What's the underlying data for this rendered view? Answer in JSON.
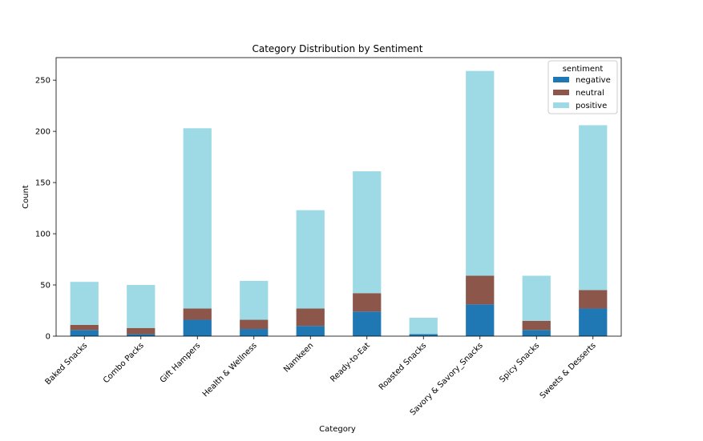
{
  "chart_data": {
    "type": "bar",
    "stacked": true,
    "title": "Category Distribution by Sentiment",
    "xlabel": "Category",
    "ylabel": "Count",
    "ylim": [
      0,
      272
    ],
    "yticks": [
      0,
      50,
      100,
      150,
      200,
      250
    ],
    "categories": [
      "Baked Snacks",
      "Combo Packs",
      "Gift Hampers",
      "Health & Wellness",
      "Namkeen",
      "Ready-to-Eat",
      "Roasted Snacks",
      "Savory & Savory_Snacks",
      "Spicy Snacks",
      "Sweets & Desserts"
    ],
    "series": [
      {
        "name": "negative",
        "color": "#1f77b4",
        "values": [
          6,
          2,
          16,
          7,
          10,
          24,
          2,
          31,
          6,
          27
        ]
      },
      {
        "name": "neutral",
        "color": "#8c564b",
        "values": [
          5,
          6,
          11,
          9,
          17,
          18,
          0,
          28,
          9,
          18
        ]
      },
      {
        "name": "positive",
        "color": "#9edae5",
        "values": [
          42,
          42,
          176,
          38,
          96,
          119,
          16,
          200,
          44,
          161
        ]
      }
    ],
    "legend": {
      "title": "sentiment",
      "position": "top-right"
    }
  }
}
